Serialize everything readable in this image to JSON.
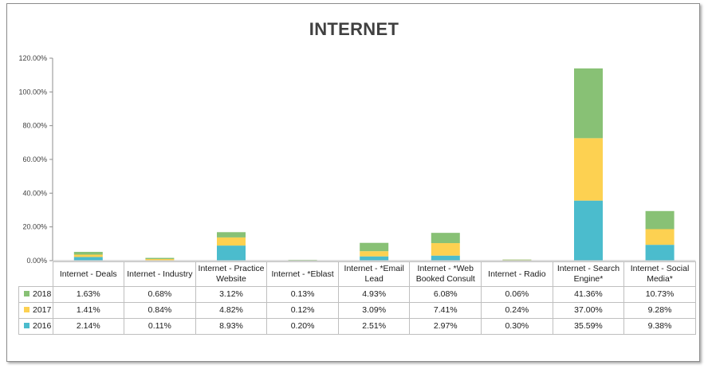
{
  "chart_data": {
    "type": "bar",
    "stacked": true,
    "title": "INTERNET",
    "categories": [
      "Internet - Deals",
      "Internet - Industry",
      "Internet - Practice Website",
      "Internet - *Eblast",
      "Internet - *Email Lead",
      "Internet - *Web Booked Consult",
      "Internet - Radio",
      "Internet - Search Engine*",
      "Internet - Social Media*"
    ],
    "series": [
      {
        "name": "2016",
        "color": "#4bbccd",
        "values": [
          2.14,
          0.11,
          8.93,
          0.2,
          2.51,
          2.97,
          0.3,
          35.59,
          9.38
        ],
        "labels": [
          "2.14%",
          "0.11%",
          "8.93%",
          "0.20%",
          "2.51%",
          "2.97%",
          "0.30%",
          "35.59%",
          "9.38%"
        ]
      },
      {
        "name": "2017",
        "color": "#fdd151",
        "values": [
          1.41,
          0.84,
          4.82,
          0.12,
          3.09,
          7.41,
          0.24,
          37.0,
          9.28
        ],
        "labels": [
          "1.41%",
          "0.84%",
          "4.82%",
          "0.12%",
          "3.09%",
          "7.41%",
          "0.24%",
          "37.00%",
          "9.28%"
        ]
      },
      {
        "name": "2018",
        "color": "#88c175",
        "values": [
          1.63,
          0.68,
          3.12,
          0.13,
          4.93,
          6.08,
          0.06,
          41.36,
          10.73
        ],
        "labels": [
          "1.63%",
          "0.68%",
          "3.12%",
          "0.13%",
          "4.93%",
          "6.08%",
          "0.06%",
          "41.36%",
          "10.73%"
        ]
      }
    ],
    "y_ticks": [
      "0.00%",
      "20.00%",
      "40.00%",
      "60.00%",
      "80.00%",
      "100.00%",
      "120.00%"
    ],
    "ylim": [
      0,
      120
    ],
    "grid": false,
    "legend": "data-table-keys"
  },
  "table_rows_order": [
    "2018",
    "2017",
    "2016"
  ]
}
